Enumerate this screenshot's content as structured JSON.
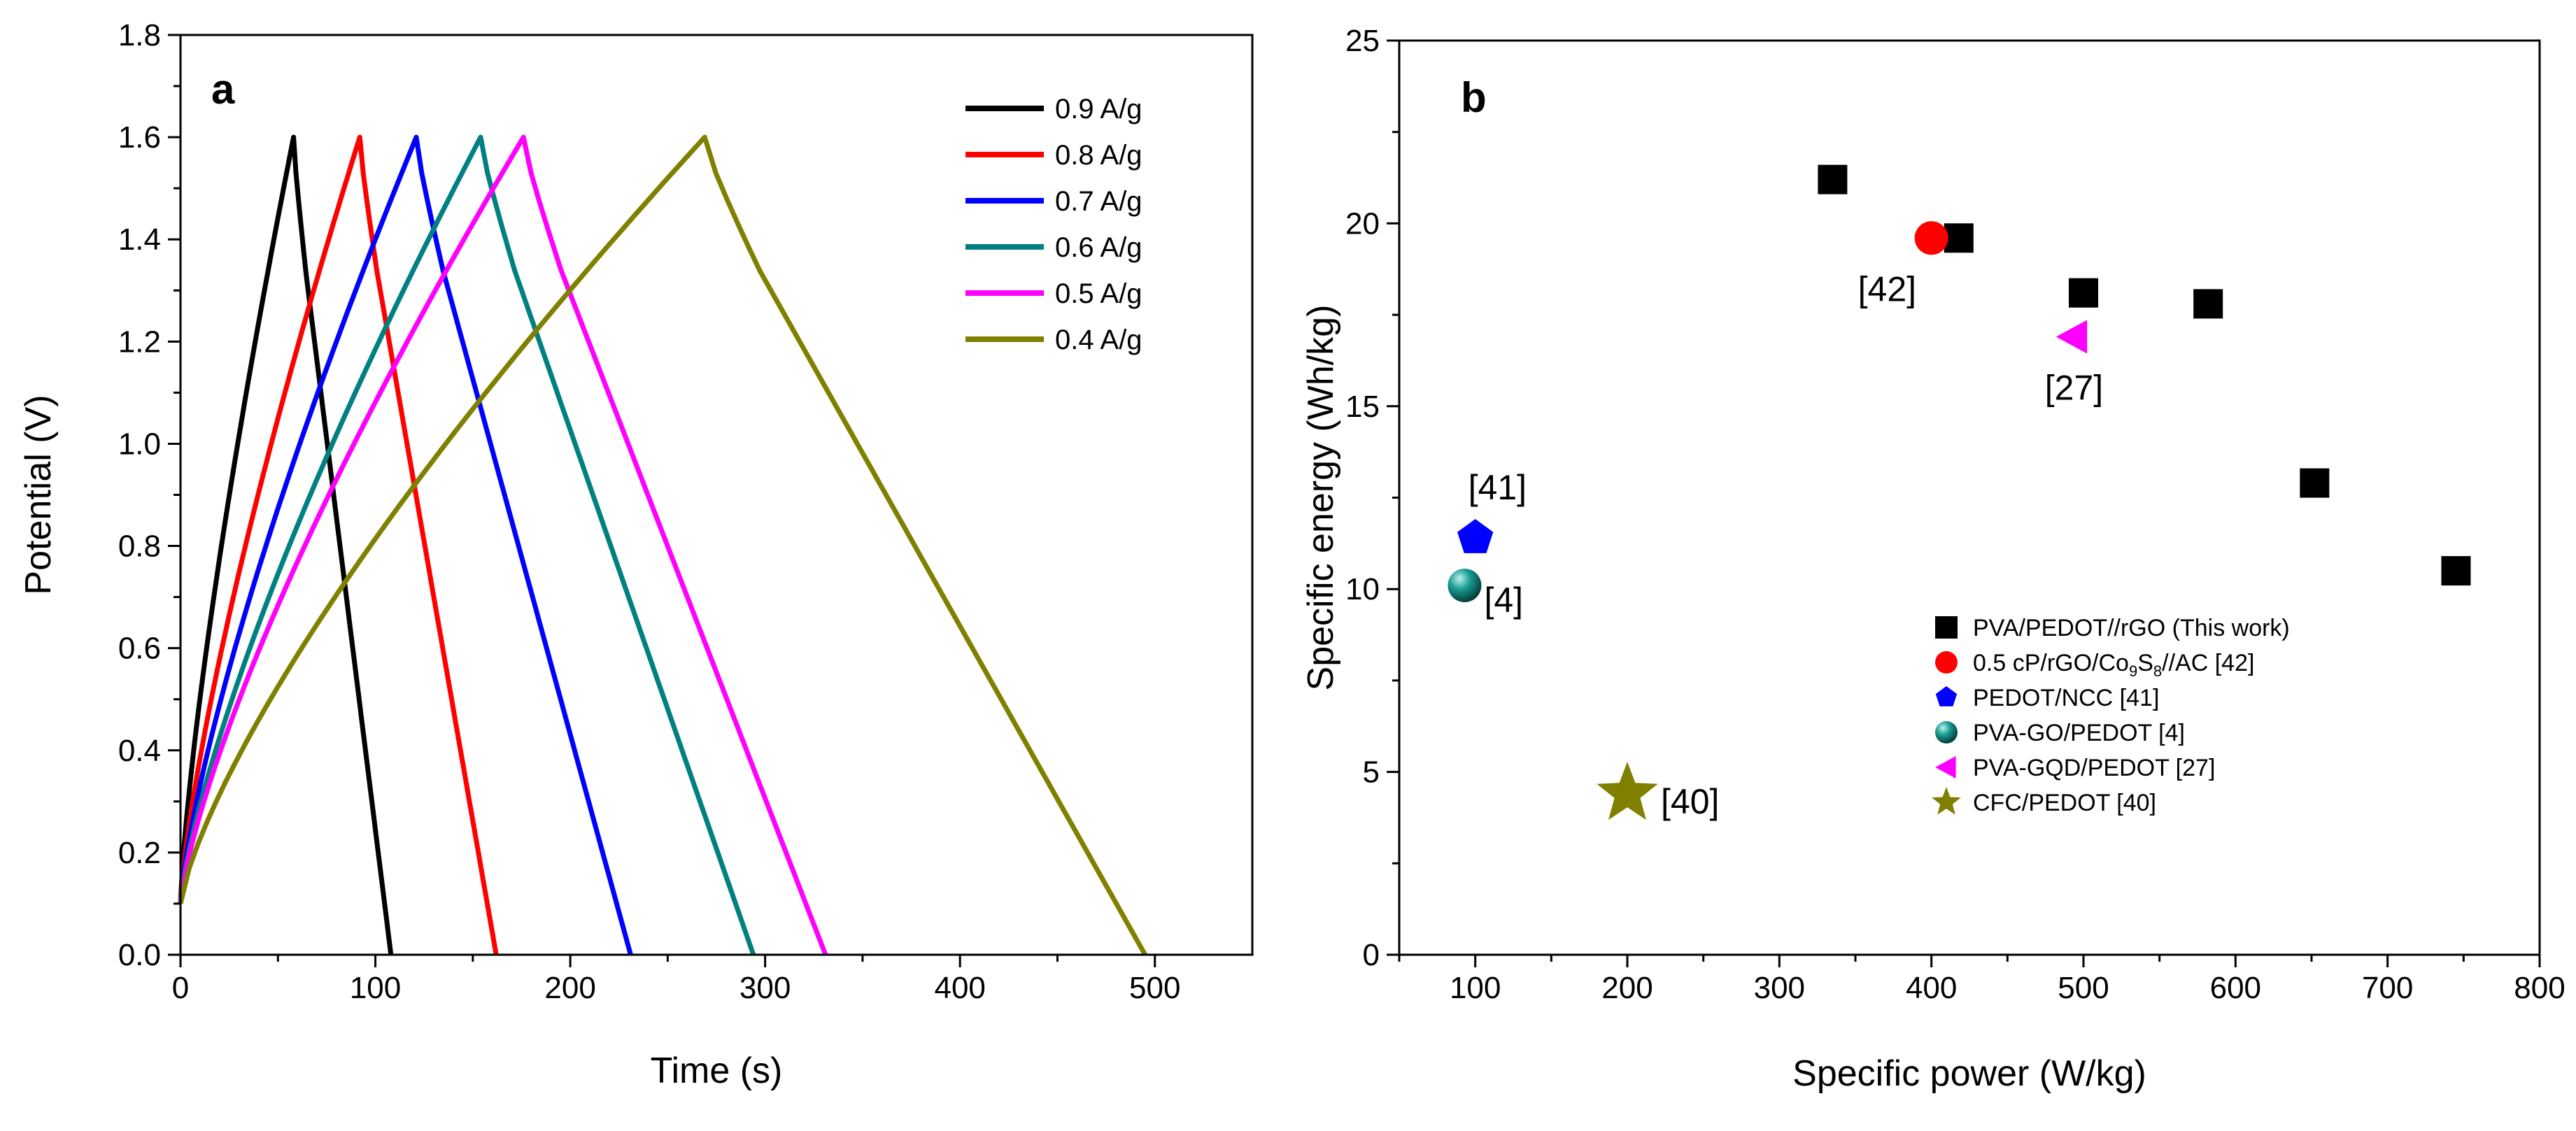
{
  "chart_data": [
    {
      "type": "line",
      "panel": "a",
      "xlabel": "Time (s)",
      "ylabel": "Potential (V)",
      "xlim": [
        0,
        550
      ],
      "ylim": [
        0,
        1.8
      ],
      "xticks": [
        0,
        100,
        200,
        300,
        400,
        500
      ],
      "yticks": [
        "0.0",
        "0.2",
        "0.4",
        "0.6",
        "0.8",
        "1.0",
        "1.2",
        "1.4",
        "1.6",
        "1.8"
      ],
      "legend_position": "top-right",
      "series": [
        {
          "name": "0.9 A/g",
          "color": "#000000",
          "charge_end": 58,
          "discharge_end": 108,
          "peak": 1.6
        },
        {
          "name": "0.8 A/g",
          "color": "#ff0000",
          "charge_end": 92,
          "discharge_end": 162,
          "peak": 1.6
        },
        {
          "name": "0.7 A/g",
          "color": "#0000ff",
          "charge_end": 121,
          "discharge_end": 231,
          "peak": 1.6
        },
        {
          "name": "0.6 A/g",
          "color": "#008080",
          "charge_end": 154,
          "discharge_end": 294,
          "peak": 1.6
        },
        {
          "name": "0.5 A/g",
          "color": "#ff00ff",
          "charge_end": 176,
          "discharge_end": 331,
          "peak": 1.6
        },
        {
          "name": "0.4 A/g",
          "color": "#808000",
          "charge_end": 269,
          "discharge_end": 495,
          "peak": 1.6
        }
      ]
    },
    {
      "type": "scatter",
      "panel": "b",
      "xlabel": "Specific power (W/kg)",
      "ylabel": "Specific energy (Wh/kg)",
      "xlim": [
        50,
        800
      ],
      "ylim": [
        0,
        25
      ],
      "xticks": [
        100,
        200,
        300,
        400,
        500,
        600,
        700,
        800
      ],
      "yticks": [
        0,
        5,
        10,
        15,
        20,
        25
      ],
      "legend_position": "bottom-right",
      "series": [
        {
          "name": "PVA/PEDOT//rGO (This work)",
          "marker": "square",
          "color": "#000000",
          "x": [
            335,
            418,
            500,
            582,
            652,
            745
          ],
          "y": [
            21.2,
            19.6,
            18.1,
            17.8,
            12.9,
            10.5
          ]
        },
        {
          "name_parts": [
            "0.5 cP/rGO/Co",
            "9",
            "S",
            "8",
            "//AC [42]"
          ],
          "marker": "circle",
          "color": "#ff0000",
          "x": [
            400
          ],
          "y": [
            19.6
          ],
          "annotation": "[42]"
        },
        {
          "name": "PEDOT/NCC [41]",
          "marker": "pentagon",
          "color": "#0000ff",
          "x": [
            100
          ],
          "y": [
            11.4
          ],
          "annotation": "[41]"
        },
        {
          "name": "PVA-GO/PEDOT [4]",
          "marker": "sphere",
          "color": "#008080",
          "x": [
            93
          ],
          "y": [
            10.1
          ],
          "annotation": "[4]"
        },
        {
          "name": "PVA-GQD/PEDOT [27]",
          "marker": "triangle-left",
          "color": "#ff00ff",
          "x": [
            493
          ],
          "y": [
            16.9
          ],
          "annotation": "[27]"
        },
        {
          "name": "CFC/PEDOT [40]",
          "marker": "star",
          "color": "#808000",
          "x": [
            200
          ],
          "y": [
            4.4
          ],
          "annotation": "[40]"
        }
      ]
    }
  ]
}
